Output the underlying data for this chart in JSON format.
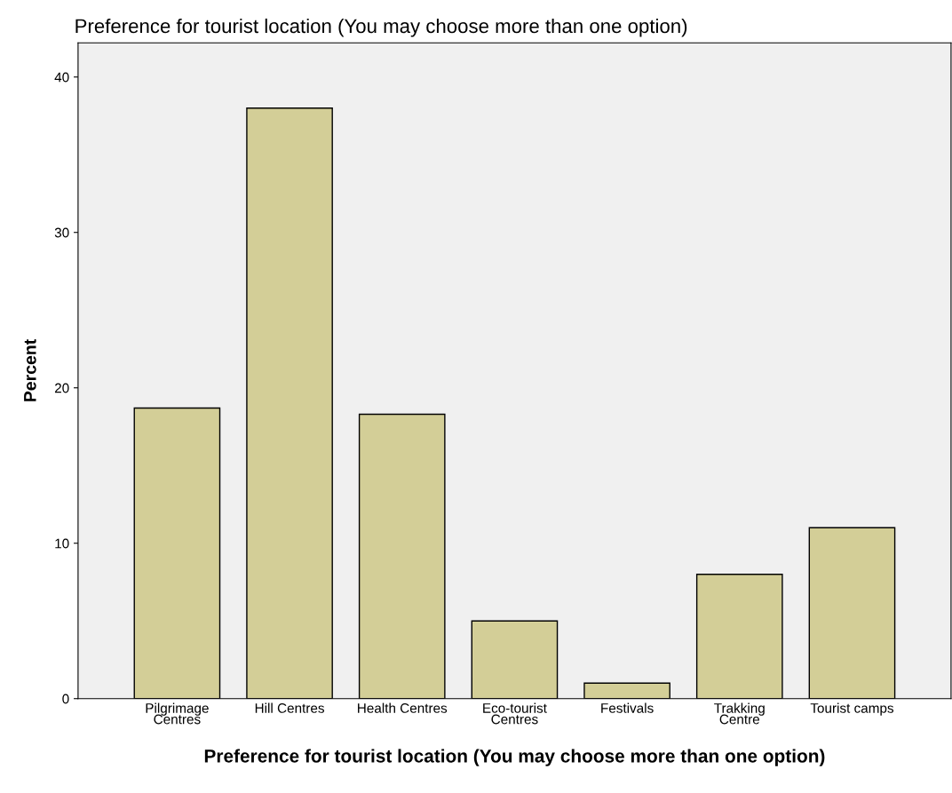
{
  "chart_data": {
    "type": "bar",
    "title": "Preference for tourist location (You may choose more than one option)",
    "xlabel": "Preference for tourist location (You may choose more than one option)",
    "ylabel": "Percent",
    "categories": [
      "Pilgrimage\nCentres",
      "Hill Centres",
      "Health Centres",
      "Eco-tourist\nCentres",
      "Festivals",
      "Trakking\nCentre",
      "Tourist camps"
    ],
    "values": [
      18.7,
      38.0,
      18.3,
      5.0,
      1.0,
      8.0,
      11.0
    ],
    "color": "#d3ce97",
    "ylim": [
      0,
      42.2
    ],
    "yticks": [
      0,
      10,
      20,
      30,
      40
    ],
    "grid": false
  }
}
